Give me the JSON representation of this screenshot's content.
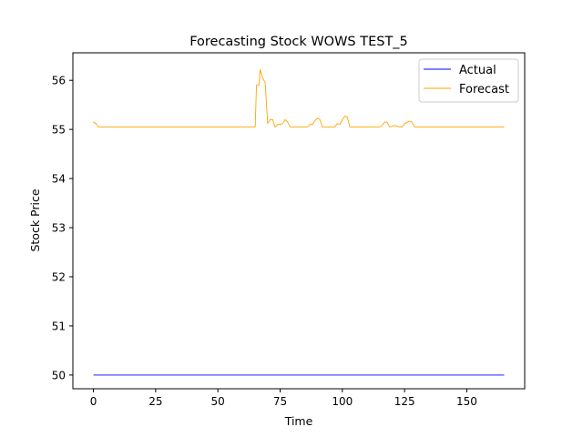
{
  "chart_data": {
    "type": "line",
    "title": "Forecasting Stock WOWS TEST_5",
    "xlabel": "Time",
    "ylabel": "Stock Price",
    "xlim": [
      -8.25,
      173.25
    ],
    "ylim": [
      49.72,
      56.56
    ],
    "x_ticks": [
      0,
      25,
      50,
      75,
      100,
      125,
      150
    ],
    "x_tick_labels": [
      "0",
      "25",
      "50",
      "75",
      "100",
      "125",
      "150"
    ],
    "y_ticks": [
      50,
      51,
      52,
      53,
      54,
      55,
      56
    ],
    "y_tick_labels": [
      "50",
      "51",
      "52",
      "53",
      "54",
      "55",
      "56"
    ],
    "grid": false,
    "legend_position": "upper right",
    "series": [
      {
        "name": "Actual",
        "color": "#0000ff",
        "points": [
          [
            0,
            50.0
          ],
          [
            165,
            50.0
          ]
        ]
      },
      {
        "name": "Forecast",
        "color": "#ffa500",
        "points": [
          [
            0,
            55.15
          ],
          [
            1,
            55.12
          ],
          [
            2,
            55.05
          ],
          [
            3,
            55.05
          ],
          [
            10,
            55.05
          ],
          [
            20,
            55.05
          ],
          [
            30,
            55.05
          ],
          [
            40,
            55.05
          ],
          [
            50,
            55.05
          ],
          [
            55,
            55.05
          ],
          [
            60,
            55.05
          ],
          [
            65,
            55.05
          ],
          [
            65.5,
            55.9
          ],
          [
            66.5,
            55.9
          ],
          [
            67,
            56.22
          ],
          [
            68,
            56.05
          ],
          [
            69,
            55.95
          ],
          [
            70,
            55.12
          ],
          [
            71,
            55.2
          ],
          [
            72,
            55.2
          ],
          [
            73,
            55.05
          ],
          [
            74,
            55.1
          ],
          [
            75,
            55.1
          ],
          [
            76,
            55.12
          ],
          [
            77,
            55.2
          ],
          [
            78,
            55.15
          ],
          [
            79,
            55.05
          ],
          [
            80,
            55.05
          ],
          [
            85,
            55.05
          ],
          [
            86,
            55.05
          ],
          [
            87,
            55.1
          ],
          [
            88,
            55.1
          ],
          [
            89,
            55.18
          ],
          [
            90,
            55.23
          ],
          [
            91,
            55.2
          ],
          [
            92,
            55.05
          ],
          [
            95,
            55.05
          ],
          [
            97,
            55.05
          ],
          [
            98,
            55.12
          ],
          [
            99,
            55.1
          ],
          [
            100,
            55.2
          ],
          [
            101,
            55.27
          ],
          [
            102,
            55.25
          ],
          [
            103,
            55.05
          ],
          [
            105,
            55.05
          ],
          [
            110,
            55.05
          ],
          [
            115,
            55.05
          ],
          [
            116,
            55.08
          ],
          [
            117,
            55.15
          ],
          [
            118,
            55.15
          ],
          [
            119,
            55.05
          ],
          [
            121,
            55.08
          ],
          [
            123,
            55.05
          ],
          [
            124,
            55.05
          ],
          [
            125,
            55.12
          ],
          [
            127,
            55.17
          ],
          [
            128,
            55.15
          ],
          [
            129,
            55.05
          ],
          [
            135,
            55.05
          ],
          [
            145,
            55.05
          ],
          [
            155,
            55.05
          ],
          [
            165,
            55.05
          ]
        ]
      }
    ]
  }
}
